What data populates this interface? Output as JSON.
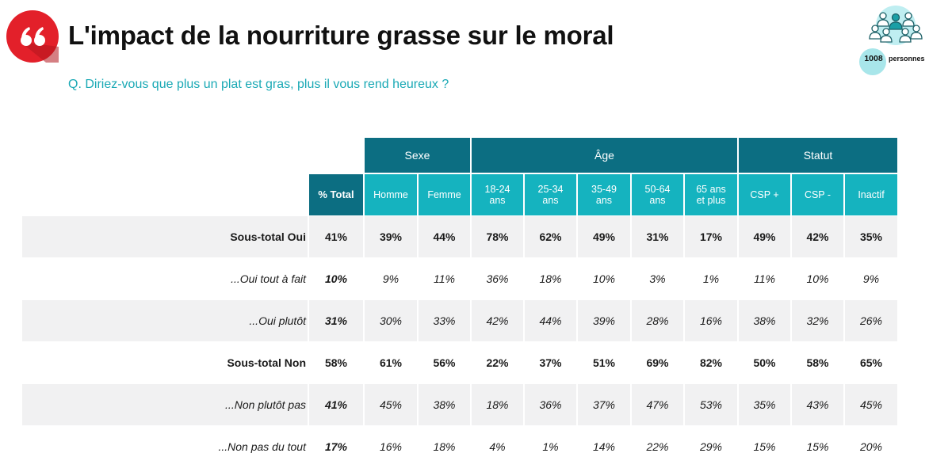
{
  "header": {
    "title": "L'impact de la nourriture grasse sur le moral",
    "question": "Q. Diriez-vous que plus un plat est gras, plus il vous rend heureux ?",
    "quote_icon": "quote-icon",
    "sample_count": "1008",
    "sample_label": "personnes",
    "sample_icon": "people-group-icon"
  },
  "colors": {
    "accent_red": "#e3202a",
    "header_dark": "#0c6e82",
    "header_light": "#15b3bf",
    "question_text": "#1aa9b5",
    "row_shade": "#f1f1f2"
  },
  "table": {
    "groups": [
      "Sexe",
      "Âge",
      "Statut"
    ],
    "total_header": "% Total",
    "columns": [
      {
        "l1": "Homme",
        "l2": ""
      },
      {
        "l1": "Femme",
        "l2": ""
      },
      {
        "l1": "18-24",
        "l2": "ans"
      },
      {
        "l1": "25-34",
        "l2": "ans"
      },
      {
        "l1": "35-49",
        "l2": "ans"
      },
      {
        "l1": "50-64",
        "l2": "ans"
      },
      {
        "l1": "65 ans",
        "l2": "et plus"
      },
      {
        "l1": "CSP +",
        "l2": ""
      },
      {
        "l1": "CSP -",
        "l2": ""
      },
      {
        "l1": "Inactif",
        "l2": ""
      }
    ],
    "rows": [
      {
        "label": "Sous-total Oui",
        "kind": "subtotal",
        "shaded": true,
        "total": "41%",
        "values": [
          "39%",
          "44%",
          "78%",
          "62%",
          "49%",
          "31%",
          "17%",
          "49%",
          "42%",
          "35%"
        ]
      },
      {
        "label": "...Oui tout à fait",
        "kind": "detail",
        "shaded": false,
        "total": "10%",
        "values": [
          "9%",
          "11%",
          "36%",
          "18%",
          "10%",
          "3%",
          "1%",
          "11%",
          "10%",
          "9%"
        ]
      },
      {
        "label": "...Oui plutôt",
        "kind": "detail",
        "shaded": true,
        "total": "31%",
        "values": [
          "30%",
          "33%",
          "42%",
          "44%",
          "39%",
          "28%",
          "16%",
          "38%",
          "32%",
          "26%"
        ]
      },
      {
        "label": "Sous-total Non",
        "kind": "subtotal",
        "shaded": false,
        "total": "58%",
        "values": [
          "61%",
          "56%",
          "22%",
          "37%",
          "51%",
          "69%",
          "82%",
          "50%",
          "58%",
          "65%"
        ]
      },
      {
        "label": "...Non plutôt pas",
        "kind": "detail",
        "shaded": true,
        "total": "41%",
        "values": [
          "45%",
          "38%",
          "18%",
          "36%",
          "37%",
          "47%",
          "53%",
          "35%",
          "43%",
          "45%"
        ]
      },
      {
        "label": "...Non pas du tout",
        "kind": "detail",
        "shaded": false,
        "total": "17%",
        "values": [
          "16%",
          "18%",
          "4%",
          "1%",
          "14%",
          "22%",
          "29%",
          "15%",
          "15%",
          "20%"
        ]
      }
    ]
  }
}
